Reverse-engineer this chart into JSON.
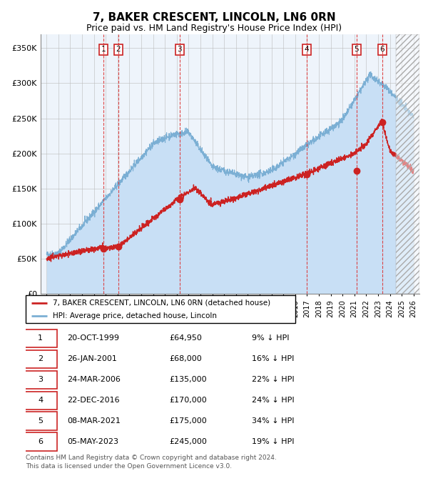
{
  "title": "7, BAKER CRESCENT, LINCOLN, LN6 0RN",
  "subtitle": "Price paid vs. HM Land Registry's House Price Index (HPI)",
  "title_fontsize": 11,
  "subtitle_fontsize": 9,
  "xlim": [
    1994.5,
    2026.5
  ],
  "ylim": [
    0,
    370000
  ],
  "yticks": [
    0,
    50000,
    100000,
    150000,
    200000,
    250000,
    300000,
    350000
  ],
  "ytick_labels": [
    "£0",
    "£50K",
    "£100K",
    "£150K",
    "£200K",
    "£250K",
    "£300K",
    "£350K"
  ],
  "hpi_fill_color": "#c8dff5",
  "hpi_line_color": "#7bafd4",
  "property_color": "#cc2222",
  "grid_color": "#bbbbbb",
  "bg_color": "#e8f0fa",
  "plot_bg_color": "#eef4fb",
  "sale_dates_x": [
    1999.81,
    2001.07,
    2006.23,
    2016.98,
    2021.19,
    2023.35
  ],
  "sale_prices_y": [
    64950,
    68000,
    135000,
    170000,
    175000,
    245000
  ],
  "sale_labels": [
    "1",
    "2",
    "3",
    "4",
    "5",
    "6"
  ],
  "legend_property": "7, BAKER CRESCENT, LINCOLN, LN6 0RN (detached house)",
  "legend_hpi": "HPI: Average price, detached house, Lincoln",
  "table_data": [
    [
      "1",
      "20-OCT-1999",
      "£64,950",
      "9% ↓ HPI"
    ],
    [
      "2",
      "26-JAN-2001",
      "£68,000",
      "16% ↓ HPI"
    ],
    [
      "3",
      "24-MAR-2006",
      "£135,000",
      "22% ↓ HPI"
    ],
    [
      "4",
      "22-DEC-2016",
      "£170,000",
      "24% ↓ HPI"
    ],
    [
      "5",
      "08-MAR-2021",
      "£175,000",
      "34% ↓ HPI"
    ],
    [
      "6",
      "05-MAY-2023",
      "£245,000",
      "19% ↓ HPI"
    ]
  ],
  "footer": "Contains HM Land Registry data © Crown copyright and database right 2024.\nThis data is licensed under the Open Government Licence v3.0.",
  "hatch_region_start": 2024.5
}
